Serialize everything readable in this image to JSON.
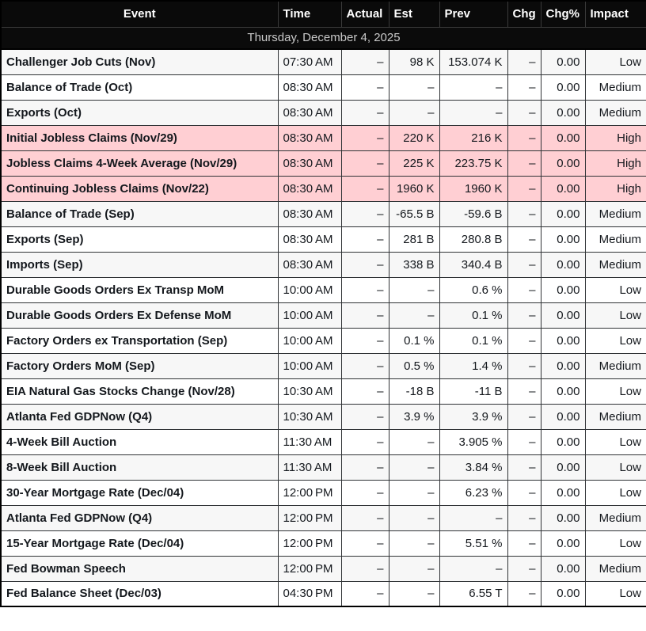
{
  "table": {
    "columns": [
      {
        "key": "event",
        "label": "Event"
      },
      {
        "key": "time",
        "label": "Time"
      },
      {
        "key": "actual",
        "label": "Actual"
      },
      {
        "key": "est",
        "label": "Est"
      },
      {
        "key": "prev",
        "label": "Prev"
      },
      {
        "key": "chg",
        "label": "Chg"
      },
      {
        "key": "chg_pct",
        "label": "Chg%"
      },
      {
        "key": "impact",
        "label": "Impact"
      }
    ],
    "date_header": "Thursday, December 4, 2025",
    "rows": [
      {
        "event": "Challenger Job Cuts (Nov)",
        "time": "07:30 AM",
        "actual": "–",
        "est": "98 K",
        "prev": "153.074 K",
        "chg": "–",
        "chg_pct": "0.00",
        "impact": "Low",
        "highlight": false
      },
      {
        "event": "Balance of Trade (Oct)",
        "time": "08:30 AM",
        "actual": "–",
        "est": "–",
        "prev": "–",
        "chg": "–",
        "chg_pct": "0.00",
        "impact": "Medium",
        "highlight": false
      },
      {
        "event": "Exports (Oct)",
        "time": "08:30 AM",
        "actual": "–",
        "est": "–",
        "prev": "–",
        "chg": "–",
        "chg_pct": "0.00",
        "impact": "Medium",
        "highlight": false
      },
      {
        "event": "Initial Jobless Claims (Nov/29)",
        "time": "08:30 AM",
        "actual": "–",
        "est": "220 K",
        "prev": "216 K",
        "chg": "–",
        "chg_pct": "0.00",
        "impact": "High",
        "highlight": true
      },
      {
        "event": "Jobless Claims 4-Week Average (Nov/29)",
        "time": "08:30 AM",
        "actual": "–",
        "est": "225 K",
        "prev": "223.75 K",
        "chg": "–",
        "chg_pct": "0.00",
        "impact": "High",
        "highlight": true
      },
      {
        "event": "Continuing Jobless Claims (Nov/22)",
        "time": "08:30 AM",
        "actual": "–",
        "est": "1960 K",
        "prev": "1960 K",
        "chg": "–",
        "chg_pct": "0.00",
        "impact": "High",
        "highlight": true
      },
      {
        "event": "Balance of Trade (Sep)",
        "time": "08:30 AM",
        "actual": "–",
        "est": "-65.5 B",
        "prev": "-59.6 B",
        "chg": "–",
        "chg_pct": "0.00",
        "impact": "Medium",
        "highlight": false
      },
      {
        "event": "Exports (Sep)",
        "time": "08:30 AM",
        "actual": "–",
        "est": "281 B",
        "prev": "280.8 B",
        "chg": "–",
        "chg_pct": "0.00",
        "impact": "Medium",
        "highlight": false
      },
      {
        "event": "Imports (Sep)",
        "time": "08:30 AM",
        "actual": "–",
        "est": "338 B",
        "prev": "340.4 B",
        "chg": "–",
        "chg_pct": "0.00",
        "impact": "Medium",
        "highlight": false
      },
      {
        "event": "Durable Goods Orders Ex Transp MoM",
        "time": "10:00 AM",
        "actual": "–",
        "est": "–",
        "prev": "0.6 %",
        "chg": "–",
        "chg_pct": "0.00",
        "impact": "Low",
        "highlight": false
      },
      {
        "event": "Durable Goods Orders Ex Defense MoM",
        "time": "10:00 AM",
        "actual": "–",
        "est": "–",
        "prev": "0.1 %",
        "chg": "–",
        "chg_pct": "0.00",
        "impact": "Low",
        "highlight": false
      },
      {
        "event": "Factory Orders ex Transportation (Sep)",
        "time": "10:00 AM",
        "actual": "–",
        "est": "0.1 %",
        "prev": "0.1 %",
        "chg": "–",
        "chg_pct": "0.00",
        "impact": "Low",
        "highlight": false
      },
      {
        "event": "Factory Orders MoM (Sep)",
        "time": "10:00 AM",
        "actual": "–",
        "est": "0.5 %",
        "prev": "1.4 %",
        "chg": "–",
        "chg_pct": "0.00",
        "impact": "Medium",
        "highlight": false
      },
      {
        "event": "EIA Natural Gas Stocks Change (Nov/28)",
        "time": "10:30 AM",
        "actual": "–",
        "est": "-18 B",
        "prev": "-11 B",
        "chg": "–",
        "chg_pct": "0.00",
        "impact": "Low",
        "highlight": false
      },
      {
        "event": "Atlanta Fed GDPNow (Q4)",
        "time": "10:30 AM",
        "actual": "–",
        "est": "3.9 %",
        "prev": "3.9 %",
        "chg": "–",
        "chg_pct": "0.00",
        "impact": "Medium",
        "highlight": false
      },
      {
        "event": "4-Week Bill Auction",
        "time": "11:30 AM",
        "actual": "–",
        "est": "–",
        "prev": "3.905 %",
        "chg": "–",
        "chg_pct": "0.00",
        "impact": "Low",
        "highlight": false
      },
      {
        "event": "8-Week Bill Auction",
        "time": "11:30 AM",
        "actual": "–",
        "est": "–",
        "prev": "3.84 %",
        "chg": "–",
        "chg_pct": "0.00",
        "impact": "Low",
        "highlight": false
      },
      {
        "event": "30-Year Mortgage Rate (Dec/04)",
        "time": "12:00 PM",
        "actual": "–",
        "est": "–",
        "prev": "6.23 %",
        "chg": "–",
        "chg_pct": "0.00",
        "impact": "Low",
        "highlight": false
      },
      {
        "event": "Atlanta Fed GDPNow (Q4)",
        "time": "12:00 PM",
        "actual": "–",
        "est": "–",
        "prev": "–",
        "chg": "–",
        "chg_pct": "0.00",
        "impact": "Medium",
        "highlight": false
      },
      {
        "event": "15-Year Mortgage Rate (Dec/04)",
        "time": "12:00 PM",
        "actual": "–",
        "est": "–",
        "prev": "5.51 %",
        "chg": "–",
        "chg_pct": "0.00",
        "impact": "Low",
        "highlight": false
      },
      {
        "event": "Fed Bowman Speech",
        "time": "12:00 PM",
        "actual": "–",
        "est": "–",
        "prev": "–",
        "chg": "–",
        "chg_pct": "0.00",
        "impact": "Medium",
        "highlight": false
      },
      {
        "event": "Fed Balance Sheet (Dec/03)",
        "time": "04:30 PM",
        "actual": "–",
        "est": "–",
        "prev": "6.55 T",
        "chg": "–",
        "chg_pct": "0.00",
        "impact": "Low",
        "highlight": false
      }
    ]
  },
  "colors": {
    "header_bg": "#0a0a0a",
    "header_text": "#ffffff",
    "date_text": "#c9c9c9",
    "body_text": "#14181d",
    "row_stripe": "#f7f7f7",
    "high_impact_row": "#ffcfd3",
    "grid_border": "#303336"
  }
}
